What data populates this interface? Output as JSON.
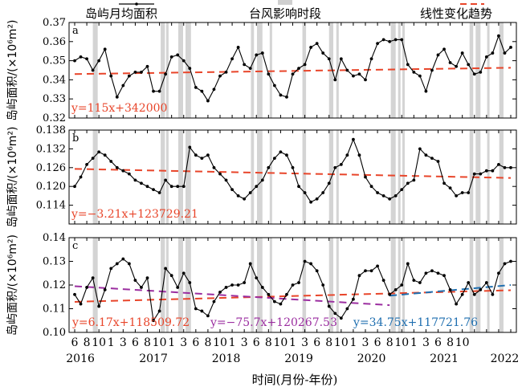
{
  "legend": {
    "monthly_label": "岛屿月均面积",
    "typhoon_label": "台风影响时段",
    "trend_label": "线性变化趋势"
  },
  "xaxis": {
    "month_ticks": [
      "6",
      "8",
      "10",
      "1",
      "3",
      "6",
      "8",
      "10",
      "1",
      "3",
      "6",
      "8",
      "10",
      "1",
      "3",
      "6",
      "8",
      "10",
      "1",
      "3",
      "6",
      "8",
      "10",
      "1",
      "3",
      "6",
      "8",
      "10",
      "1",
      "3",
      "6",
      "8",
      "10"
    ],
    "year_ticks": [
      "2016",
      "2017",
      "2018",
      "2019",
      "2020",
      "2021",
      "2022"
    ],
    "label": "时间(月份-年份)"
  },
  "colors": {
    "line": "#000000",
    "trend_red": "#e8452a",
    "trend_purple": "#9b2ea0",
    "trend_blue": "#1f6fb0",
    "typhoon_band": "#d4d4d4"
  },
  "chart_data": [
    {
      "type": "line",
      "panel": "a",
      "ylabel": "岛屿面积/(×10⁶m²)",
      "ylim": [
        0.32,
        0.37
      ],
      "yticks": [
        "0.32",
        "0.33",
        "0.34",
        "0.35",
        "0.36",
        "0.37"
      ],
      "x_start": "2016-06",
      "x_end": "2022-11",
      "values": [
        0.35,
        0.352,
        0.351,
        0.345,
        0.35,
        0.356,
        0.342,
        0.331,
        0.337,
        0.342,
        0.344,
        0.344,
        0.347,
        0.334,
        0.334,
        0.343,
        0.352,
        0.353,
        0.35,
        0.346,
        0.336,
        0.334,
        0.329,
        0.335,
        0.342,
        0.344,
        0.351,
        0.357,
        0.348,
        0.346,
        0.353,
        0.354,
        0.343,
        0.337,
        0.332,
        0.331,
        0.343,
        0.346,
        0.348,
        0.357,
        0.359,
        0.354,
        0.351,
        0.34,
        0.351,
        0.345,
        0.342,
        0.343,
        0.34,
        0.351,
        0.359,
        0.361,
        0.36,
        0.361,
        0.361,
        0.348,
        0.344,
        0.342,
        0.334,
        0.345,
        0.353,
        0.356,
        0.349,
        0.347,
        0.354,
        0.348,
        0.343,
        0.344,
        0.352,
        0.354,
        0.363,
        0.354,
        0.357
      ],
      "trend": {
        "start": 0.343,
        "end": 0.3463,
        "color": "red"
      },
      "equation": "y=115x+342000"
    },
    {
      "type": "line",
      "panel": "b",
      "ylabel": "岛屿面积/(×10⁶m²)",
      "ylim": [
        0.108,
        0.138
      ],
      "yticks": [
        "0.114",
        "0.120",
        "0.126",
        "0.132",
        "0.138"
      ],
      "x_start": "2016-06",
      "x_end": "2022-11",
      "values": [
        0.12,
        0.123,
        0.127,
        0.129,
        0.131,
        0.13,
        0.128,
        0.126,
        0.125,
        0.124,
        0.122,
        0.121,
        0.12,
        0.119,
        0.118,
        0.122,
        0.12,
        0.12,
        0.12,
        0.1325,
        0.13,
        0.129,
        0.13,
        0.126,
        0.124,
        0.122,
        0.119,
        0.117,
        0.116,
        0.118,
        0.12,
        0.122,
        0.126,
        0.129,
        0.131,
        0.13,
        0.126,
        0.12,
        0.118,
        0.115,
        0.116,
        0.118,
        0.121,
        0.126,
        0.127,
        0.13,
        0.135,
        0.13,
        0.123,
        0.12,
        0.118,
        0.117,
        0.116,
        0.117,
        0.119,
        0.121,
        0.122,
        0.132,
        0.13,
        0.129,
        0.128,
        0.121,
        0.1195,
        0.117,
        0.118,
        0.118,
        0.124,
        0.124,
        0.125,
        0.125,
        0.127,
        0.126,
        0.126
      ],
      "trend": {
        "start": 0.1256,
        "end": 0.1227,
        "color": "red"
      },
      "equation": "y=−3.21x+123729.21"
    },
    {
      "type": "line",
      "panel": "c",
      "ylabel": "岛屿面积/(×10⁶m²)",
      "ylim": [
        0.1,
        0.14
      ],
      "yticks": [
        "0.10",
        "0.11",
        "0.12",
        "0.13",
        "0.14"
      ],
      "x_start": "2016-06",
      "x_end": "2022-11",
      "values": [
        0.116,
        0.112,
        0.119,
        0.123,
        0.111,
        0.118,
        0.127,
        0.129,
        0.131,
        0.129,
        0.122,
        0.119,
        0.123,
        0.105,
        0.109,
        0.127,
        0.124,
        0.119,
        0.125,
        0.121,
        0.11,
        0.109,
        0.107,
        0.113,
        0.117,
        0.119,
        0.12,
        0.12,
        0.121,
        0.129,
        0.123,
        0.119,
        0.116,
        0.113,
        0.112,
        0.116,
        0.12,
        0.121,
        0.13,
        0.129,
        0.126,
        0.12,
        0.111,
        0.108,
        0.106,
        0.11,
        0.114,
        0.124,
        0.126,
        0.126,
        0.128,
        0.122,
        0.116,
        0.118,
        0.12,
        0.129,
        0.122,
        0.121,
        0.125,
        0.126,
        0.125,
        0.124,
        0.118,
        0.112,
        0.116,
        0.121,
        0.116,
        0.118,
        0.121,
        0.116,
        0.125,
        0.129,
        0.13
      ],
      "trends": [
        {
          "start_month": 0,
          "end_month": 72,
          "start": 0.1129,
          "end": 0.1178,
          "color": "red",
          "equation": "y=6.17x+118509.72"
        },
        {
          "start_month": 0,
          "end_month": 52,
          "start": 0.1195,
          "end": 0.1115,
          "color": "purple",
          "equation": "y=−75.7x+120267.53"
        },
        {
          "start_month": 52,
          "end_month": 72,
          "start": 0.1155,
          "end": 0.12,
          "color": "blue",
          "equation": "y=34.75x+117721.76"
        }
      ]
    }
  ],
  "typhoon_periods": [
    {
      "start": 3.0,
      "end": 3.8
    },
    {
      "start": 14.2,
      "end": 14.9
    },
    {
      "start": 15.1,
      "end": 15.5
    },
    {
      "start": 17.1,
      "end": 17.9
    },
    {
      "start": 18.3,
      "end": 19.2
    },
    {
      "start": 29.1,
      "end": 29.6
    },
    {
      "start": 30.1,
      "end": 31.0
    },
    {
      "start": 32.2,
      "end": 32.6
    },
    {
      "start": 37.6,
      "end": 38.2
    },
    {
      "start": 42.0,
      "end": 42.7
    },
    {
      "start": 43.2,
      "end": 43.6
    },
    {
      "start": 52.2,
      "end": 53.0
    },
    {
      "start": 53.4,
      "end": 53.8
    },
    {
      "start": 54.1,
      "end": 54.5
    },
    {
      "start": 65.2,
      "end": 65.8
    },
    {
      "start": 66.2,
      "end": 67.0
    },
    {
      "start": 68.1,
      "end": 68.5
    },
    {
      "start": 70.1,
      "end": 70.8
    }
  ]
}
